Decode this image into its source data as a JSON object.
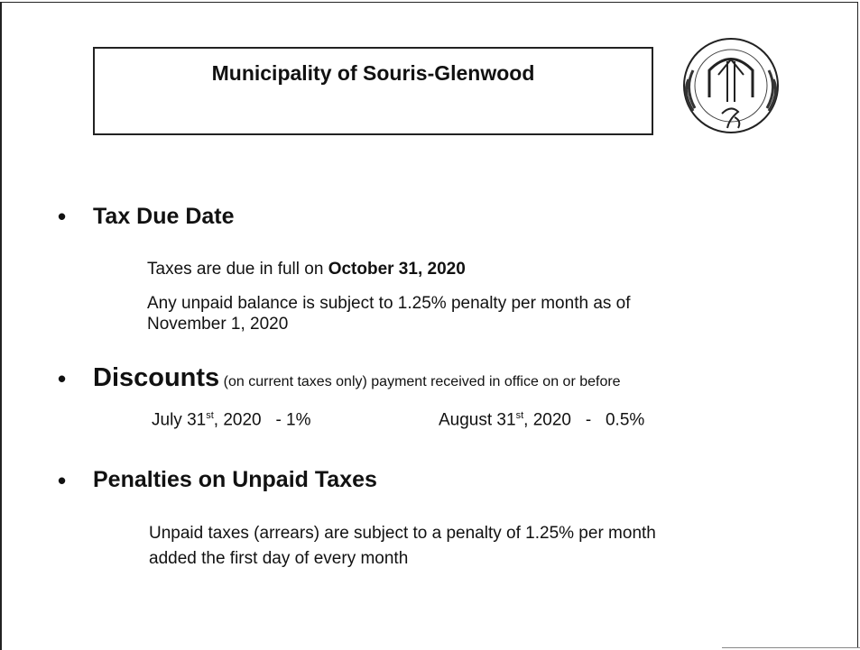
{
  "header": {
    "title": "Municipality of Souris-Glenwood"
  },
  "sections": [
    {
      "heading": "Tax Due Date",
      "due_prefix": "Taxes are due in full on ",
      "due_date": "October 31, 2020",
      "lines": [
        "Any unpaid balance is subject to 1.25% penalty per month as of",
        "November 1, 2020"
      ]
    },
    {
      "heading": "Discounts",
      "note": "(on current taxes only) payment received in office on or before",
      "discounts": [
        {
          "day": "July 31",
          "suffix": "st",
          "year": ", 2020",
          "dash": "-",
          "rate": "1%"
        },
        {
          "day": "August 31",
          "suffix": "st",
          "year": ", 2020",
          "dash": "-",
          "rate": "0.5%"
        }
      ]
    },
    {
      "heading": "Penalties on Unpaid Taxes",
      "lines": [
        "Unpaid taxes (arrears) are subject to a penalty of 1.25% per month",
        "added the first day of every month"
      ]
    }
  ]
}
